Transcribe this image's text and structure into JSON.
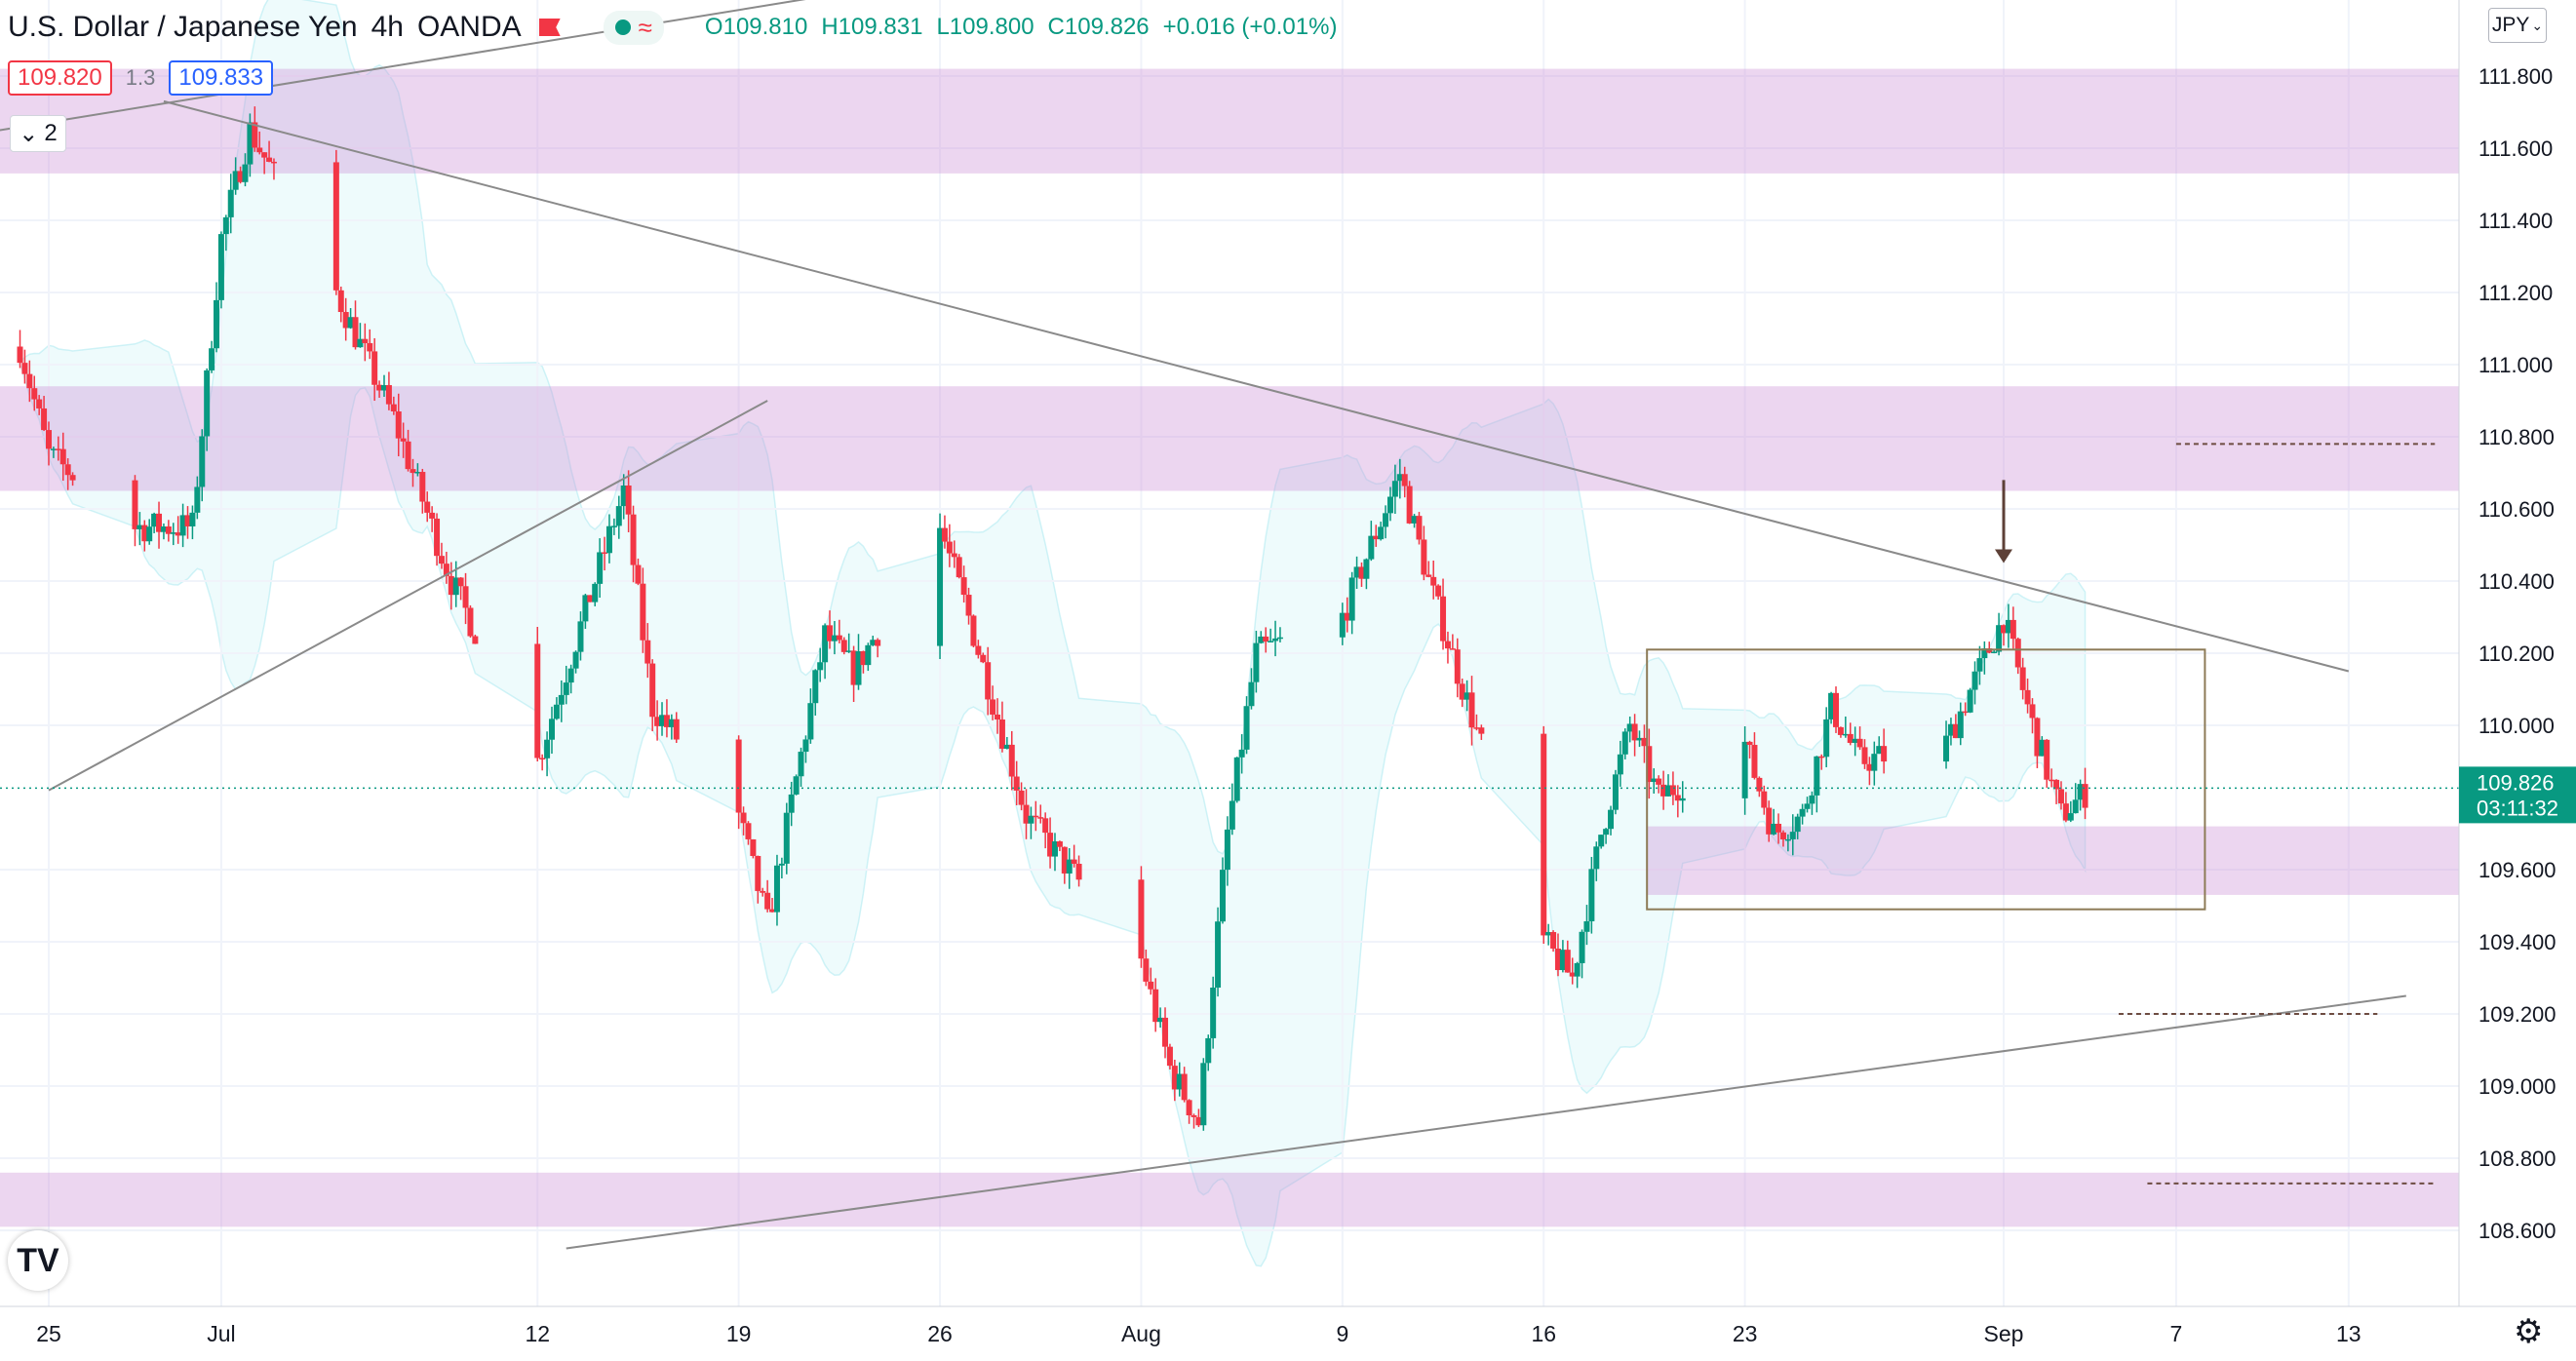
{
  "header": {
    "symbol": "U.S. Dollar / Japanese Yen",
    "interval": "4h",
    "exchange": "OANDA",
    "open": "O109.810",
    "high": "H109.831",
    "low": "L109.800",
    "close": "C109.826",
    "change": "+0.016 (+0.01%)",
    "bid": "109.820",
    "spread": "1.3",
    "ask": "109.833",
    "indicator_count": "2",
    "currency_button": "JPY"
  },
  "colors": {
    "up": "#089981",
    "down": "#f23645",
    "zone": "#ce93d8",
    "trendline": "#8a8a8a",
    "box": "#8d7b57",
    "dashed": "#6d4c41",
    "bands": "#b2ebf2",
    "price_tag": "#089981"
  },
  "chart_data": {
    "type": "candlestick",
    "y_axis": {
      "ticks": [
        "111.800",
        "111.600",
        "111.400",
        "111.200",
        "111.000",
        "110.800",
        "110.600",
        "110.400",
        "110.200",
        "110.000",
        "109.600",
        "109.400",
        "109.200",
        "109.000",
        "108.800",
        "108.600"
      ],
      "range": [
        108.55,
        112.0
      ]
    },
    "x_axis": {
      "ticks": [
        {
          "label": "25",
          "date": "2021-06-25"
        },
        {
          "label": "Jul",
          "date": "2021-07-01"
        },
        {
          "label": "12",
          "date": "2021-07-12"
        },
        {
          "label": "19",
          "date": "2021-07-19"
        },
        {
          "label": "26",
          "date": "2021-07-26"
        },
        {
          "label": "Aug",
          "date": "2021-08-02"
        },
        {
          "label": "9",
          "date": "2021-08-09"
        },
        {
          "label": "16",
          "date": "2021-08-16"
        },
        {
          "label": "23",
          "date": "2021-08-23"
        },
        {
          "label": "Sep",
          "date": "2021-09-01"
        },
        {
          "label": "7",
          "date": "2021-09-07"
        },
        {
          "label": "13",
          "date": "2021-09-13"
        }
      ]
    },
    "last_price": "109.826",
    "countdown": "03:11:32",
    "path_points": [
      {
        "date": "2021-06-24",
        "price": 111.05
      },
      {
        "date": "2021-06-25",
        "price": 110.75
      },
      {
        "date": "2021-06-28",
        "price": 110.55
      },
      {
        "date": "2021-06-30",
        "price": 110.55
      },
      {
        "date": "2021-07-01",
        "price": 111.35
      },
      {
        "date": "2021-07-02",
        "price": 111.65
      },
      {
        "date": "2021-07-05",
        "price": 111.2
      },
      {
        "date": "2021-07-07",
        "price": 110.85
      },
      {
        "date": "2021-07-09",
        "price": 110.4
      },
      {
        "date": "2021-07-12",
        "price": 109.9
      },
      {
        "date": "2021-07-14",
        "price": 110.4
      },
      {
        "date": "2021-07-15",
        "price": 110.65
      },
      {
        "date": "2021-07-16",
        "price": 110.05
      },
      {
        "date": "2021-07-19",
        "price": 109.75
      },
      {
        "date": "2021-07-20",
        "price": 109.45
      },
      {
        "date": "2021-07-22",
        "price": 110.25
      },
      {
        "date": "2021-07-23",
        "price": 110.15
      },
      {
        "date": "2021-07-26",
        "price": 110.55
      },
      {
        "date": "2021-07-27",
        "price": 110.3
      },
      {
        "date": "2021-07-29",
        "price": 109.75
      },
      {
        "date": "2021-08-02",
        "price": 109.35
      },
      {
        "date": "2021-08-03",
        "price": 109.05
      },
      {
        "date": "2021-08-04",
        "price": 108.9
      },
      {
        "date": "2021-08-05",
        "price": 109.7
      },
      {
        "date": "2021-08-06",
        "price": 110.2
      },
      {
        "date": "2021-08-09",
        "price": 110.3
      },
      {
        "date": "2021-08-11",
        "price": 110.7
      },
      {
        "date": "2021-08-12",
        "price": 110.4
      },
      {
        "date": "2021-08-13",
        "price": 110.15
      },
      {
        "date": "2021-08-16",
        "price": 109.4
      },
      {
        "date": "2021-08-17",
        "price": 109.3
      },
      {
        "date": "2021-08-18",
        "price": 109.7
      },
      {
        "date": "2021-08-19",
        "price": 110.0
      },
      {
        "date": "2021-08-20",
        "price": 109.8
      },
      {
        "date": "2021-08-23",
        "price": 109.95
      },
      {
        "date": "2021-08-24",
        "price": 109.7
      },
      {
        "date": "2021-08-25",
        "price": 109.75
      },
      {
        "date": "2021-08-26",
        "price": 110.05
      },
      {
        "date": "2021-08-27",
        "price": 109.9
      },
      {
        "date": "2021-08-30",
        "price": 109.95
      },
      {
        "date": "2021-09-01",
        "price": 110.3
      },
      {
        "date": "2021-09-02",
        "price": 110.0
      },
      {
        "date": "2021-09-03",
        "price": 109.75
      },
      {
        "date": "2021-09-04",
        "price": 109.826
      }
    ],
    "zones": [
      {
        "from": 111.53,
        "to": 111.82
      },
      {
        "from": 110.65,
        "to": 110.94
      },
      {
        "from": 108.61,
        "to": 108.76
      }
    ],
    "range_zone": {
      "from": 109.53,
      "to": 109.72,
      "start": "2021-08-20",
      "end": "2021-09-08"
    },
    "range_box": {
      "high": 110.21,
      "low": 109.49,
      "start": "2021-08-20",
      "end": "2021-09-08"
    },
    "trendlines": [
      {
        "from": {
          "date": "2021-06-21",
          "price": 111.62
        },
        "to": {
          "date": "2021-07-28",
          "price": 112.1
        }
      },
      {
        "from": {
          "date": "2021-06-29",
          "price": 111.73
        },
        "to": {
          "date": "2021-09-13",
          "price": 110.15
        }
      },
      {
        "from": {
          "date": "2021-06-25",
          "price": 109.82
        },
        "to": {
          "date": "2021-07-20",
          "price": 110.9
        }
      },
      {
        "from": {
          "date": "2021-07-13",
          "price": 108.55
        },
        "to": {
          "date": "2021-09-15",
          "price": 109.25
        }
      }
    ],
    "dashed_levels": [
      {
        "price": 110.78,
        "start": "2021-09-07",
        "end": "2021-09-16"
      },
      {
        "price": 109.2,
        "start": "2021-09-05",
        "end": "2021-09-14"
      },
      {
        "price": 108.73,
        "start": "2021-09-06",
        "end": "2021-09-16"
      }
    ],
    "arrow": {
      "date": "2021-09-01",
      "price_top": 110.68,
      "price_tip": 110.45
    }
  }
}
